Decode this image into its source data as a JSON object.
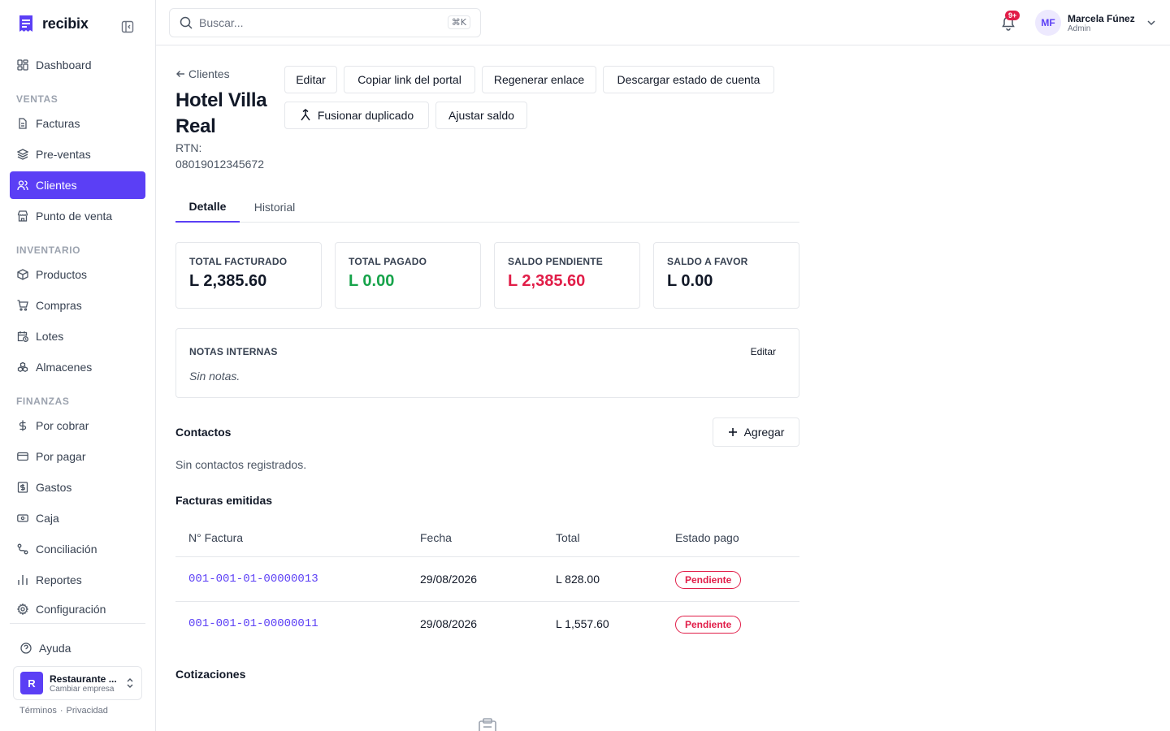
{
  "brand": {
    "name": "recibix",
    "color": "#5b3ff5"
  },
  "sidebar": {
    "top_item": {
      "label": "Dashboard",
      "icon": "layout-grid-icon"
    },
    "sections": [
      {
        "title": "VENTAS",
        "items": [
          {
            "label": "Facturas",
            "icon": "file-text-icon",
            "active": false
          },
          {
            "label": "Pre-ventas",
            "icon": "layers-icon",
            "active": false
          },
          {
            "label": "Clientes",
            "icon": "users-icon",
            "active": true
          },
          {
            "label": "Punto de venta",
            "icon": "store-icon",
            "active": false
          }
        ]
      },
      {
        "title": "INVENTARIO",
        "items": [
          {
            "label": "Productos",
            "icon": "package-icon",
            "active": false
          },
          {
            "label": "Compras",
            "icon": "cart-icon",
            "active": false
          },
          {
            "label": "Lotes",
            "icon": "calendar-clock-icon",
            "active": false
          },
          {
            "label": "Almacenes",
            "icon": "boxes-icon",
            "active": false
          }
        ]
      },
      {
        "title": "FINANZAS",
        "items": [
          {
            "label": "Por cobrar",
            "icon": "dollar-icon",
            "active": false
          },
          {
            "label": "Por pagar",
            "icon": "credit-card-icon",
            "active": false
          },
          {
            "label": "Gastos",
            "icon": "receipt-dollar-icon",
            "active": false
          },
          {
            "label": "Caja",
            "icon": "cash-icon",
            "active": false
          },
          {
            "label": "Conciliación",
            "icon": "route-icon",
            "active": false
          },
          {
            "label": "Reportes",
            "icon": "bar-chart-icon",
            "active": false
          },
          {
            "label": "Configuración",
            "icon": "gear-icon",
            "active": false
          }
        ]
      }
    ],
    "help": {
      "label": "Ayuda",
      "icon": "help-circle-icon"
    },
    "company": {
      "initial": "R",
      "name": "Restaurante ...",
      "sub": "Cambiar empresa"
    },
    "legal": {
      "terms": "Términos",
      "separator": "·",
      "privacy": "Privacidad"
    }
  },
  "topbar": {
    "search_placeholder": "Buscar...",
    "shortcut": "⌘K",
    "notifications_badge": "9+",
    "user": {
      "initials": "MF",
      "name": "Marcela Fúnez",
      "role": "Admin"
    }
  },
  "client": {
    "back_label": "Clientes",
    "name": "Hotel Villa Real",
    "rtn_label": "RTN:",
    "rtn_value": "08019012345672"
  },
  "actions": {
    "edit": "Editar",
    "copy_portal": "Copiar link del portal",
    "regenerate": "Regenerar enlace",
    "download_statement": "Descargar estado de cuenta",
    "merge_duplicate": "Fusionar duplicado",
    "adjust_balance": "Ajustar saldo"
  },
  "tabs": [
    {
      "label": "Detalle",
      "active": true
    },
    {
      "label": "Historial",
      "active": false
    }
  ],
  "stats": [
    {
      "label": "TOTAL FACTURADO",
      "value": "L 2,385.60",
      "color": "#111827"
    },
    {
      "label": "TOTAL PAGADO",
      "value": "L 0.00",
      "color": "#16a34a"
    },
    {
      "label": "SALDO PENDIENTE",
      "value": "L 2,385.60",
      "color": "#e11d48"
    },
    {
      "label": "SALDO A FAVOR",
      "value": "L 0.00",
      "color": "#111827"
    }
  ],
  "notes": {
    "label": "NOTAS INTERNAS",
    "edit": "Editar",
    "text": "Sin notas."
  },
  "contacts": {
    "title": "Contactos",
    "add_label": "Agregar",
    "empty": "Sin contactos registrados."
  },
  "invoices": {
    "title": "Facturas emitidas",
    "columns": [
      "N° Factura",
      "Fecha",
      "Total",
      "Estado pago"
    ],
    "rows": [
      {
        "number": "001-001-01-00000013",
        "date": "29/08/2026",
        "total": "L 828.00",
        "status": "Pendiente"
      },
      {
        "number": "001-001-01-00000011",
        "date": "29/08/2026",
        "total": "L 1,557.60",
        "status": "Pendiente"
      }
    ]
  },
  "quotes": {
    "title": "Cotizaciones"
  }
}
